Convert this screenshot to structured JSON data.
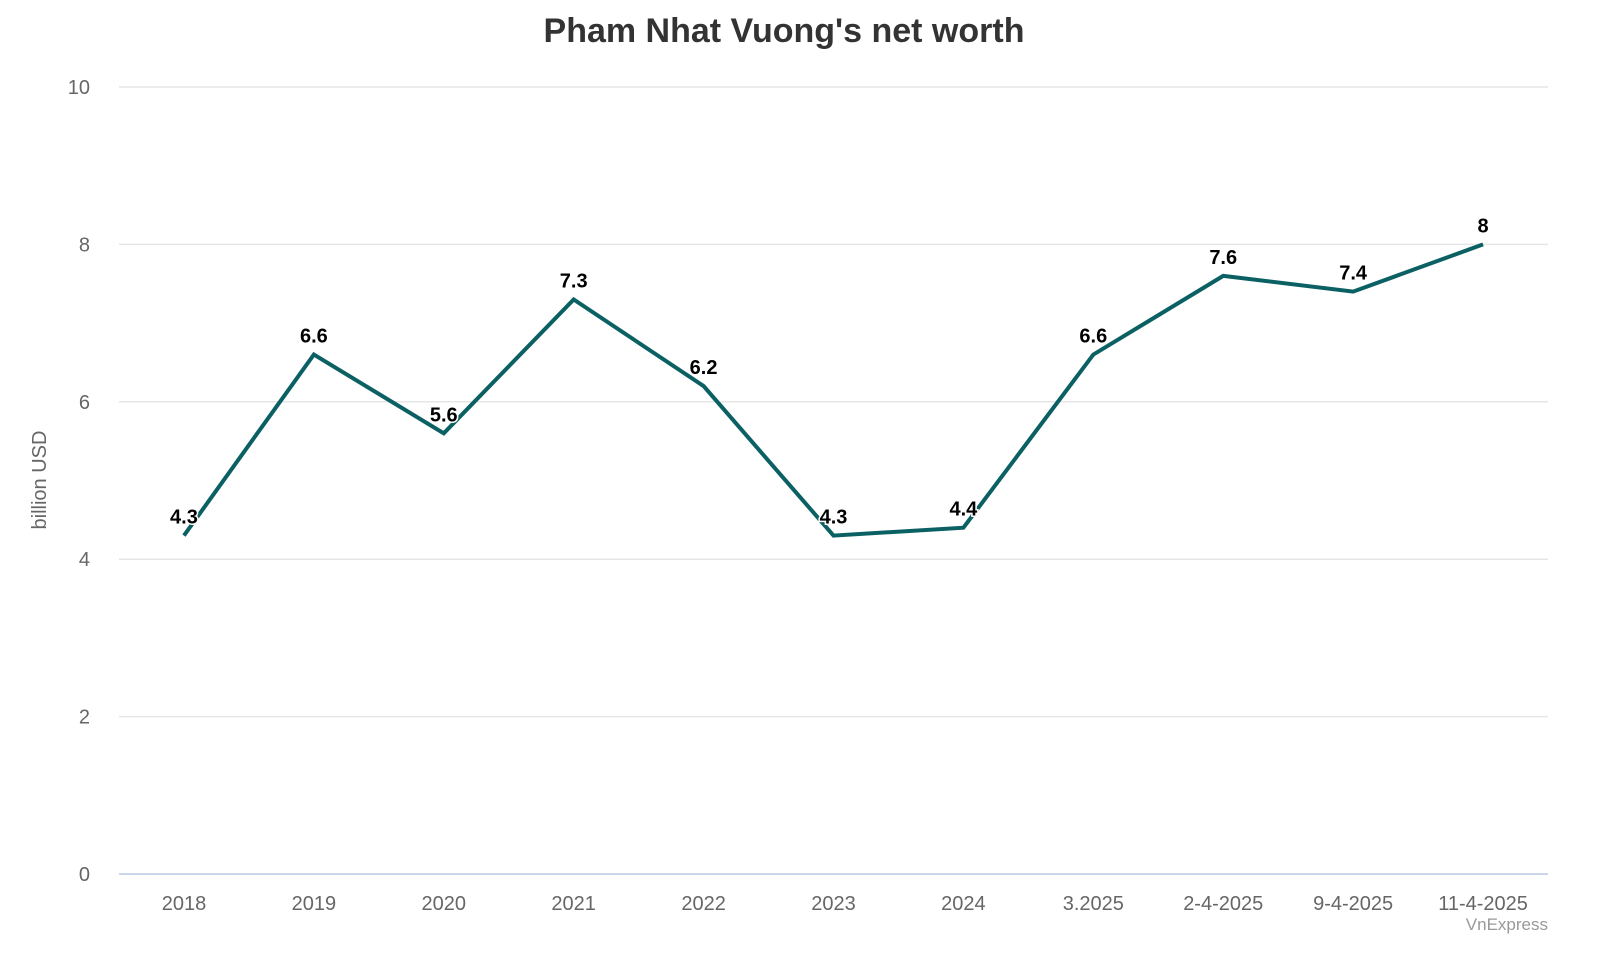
{
  "chart_data": {
    "type": "line",
    "title": "Pham Nhat Vuong's net worth",
    "xlabel": "",
    "ylabel": "billion USD",
    "ylim": [
      0,
      10
    ],
    "yticks": [
      0,
      2,
      4,
      6,
      8,
      10
    ],
    "grid": true,
    "legend": null,
    "categories": [
      "2018",
      "2019",
      "2020",
      "2021",
      "2022",
      "2023",
      "2024",
      "3.2025",
      "2-4-2025",
      "9-4-2025",
      "11-4-2025"
    ],
    "series": [
      {
        "name": "Net worth",
        "values": [
          4.3,
          6.6,
          5.6,
          7.3,
          6.2,
          4.3,
          4.4,
          6.6,
          7.6,
          7.4,
          8
        ],
        "labels": [
          "4.3",
          "6.6",
          "5.6",
          "7.3",
          "6.2",
          "4.3",
          "4.4",
          "6.6",
          "7.6",
          "7.4",
          "8"
        ],
        "color": "#0b6063"
      }
    ],
    "credit": "VnExpress"
  },
  "colors": {
    "line": "#0b6063",
    "grid": "#e6e6e6",
    "axis": "#ccd6eb",
    "tick_text": "#666666",
    "title": "#333333",
    "data_label": "#000000",
    "credit": "#999999"
  }
}
